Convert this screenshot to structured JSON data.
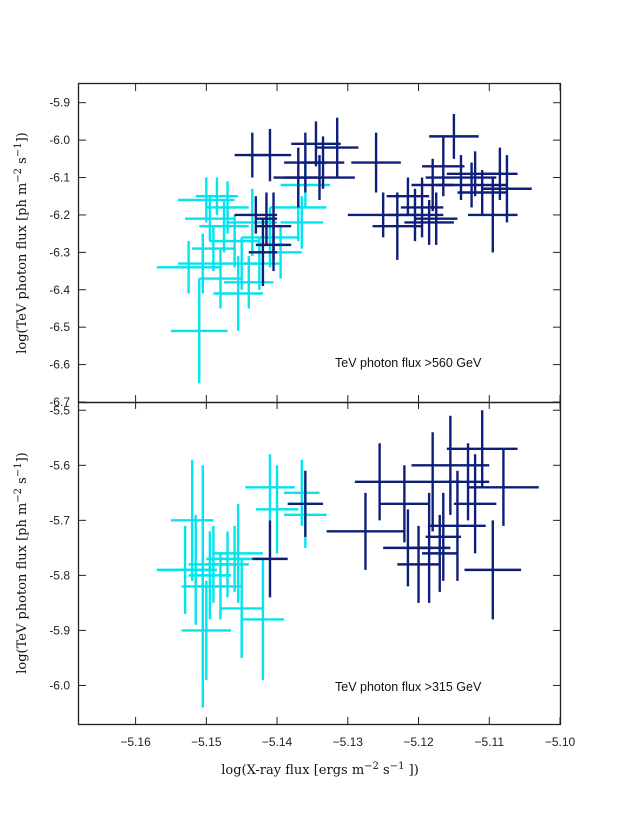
{
  "chart_data": [
    {
      "type": "scatter",
      "panel": "top",
      "annotation": "TeV photon flux >560 GeV",
      "ylabel": "log(TeV photon flux [ph m^-2 s^-1])",
      "xlim": [
        -5.168,
        -5.1
      ],
      "ylim": [
        -6.7,
        -5.85
      ],
      "yticks": [
        -6.7,
        -6.6,
        -6.5,
        -6.4,
        -6.3,
        -6.2,
        -6.1,
        -6.0,
        -5.9
      ],
      "ytick_labels": [
        "-6.7",
        "-6.6",
        "-6.5",
        "-6.4",
        "-6.3",
        "-6.2",
        "-6.1",
        "-6.0",
        "-5.9"
      ],
      "series": [
        {
          "name": "cyan",
          "color": "#00e5ee",
          "points": [
            {
              "x": -5.1525,
              "y": -6.34,
              "xerr": 0.0045,
              "yerr": 0.07
            },
            {
              "x": -5.151,
              "y": -6.51,
              "xerr": 0.004,
              "yerr": 0.14
            },
            {
              "x": -5.1505,
              "y": -6.33,
              "xerr": 0.0035,
              "yerr": 0.08
            },
            {
              "x": -5.15,
              "y": -6.16,
              "xerr": 0.004,
              "yerr": 0.06
            },
            {
              "x": -5.1495,
              "y": -6.21,
              "xerr": 0.0035,
              "yerr": 0.06
            },
            {
              "x": -5.149,
              "y": -6.29,
              "xerr": 0.003,
              "yerr": 0.06
            },
            {
              "x": -5.1485,
              "y": -6.15,
              "xerr": 0.003,
              "yerr": 0.05
            },
            {
              "x": -5.148,
              "y": -6.37,
              "xerr": 0.003,
              "yerr": 0.08
            },
            {
              "x": -5.1475,
              "y": -6.23,
              "xerr": 0.0035,
              "yerr": 0.07
            },
            {
              "x": -5.147,
              "y": -6.18,
              "xerr": 0.003,
              "yerr": 0.07
            },
            {
              "x": -5.146,
              "y": -6.27,
              "xerr": 0.0035,
              "yerr": 0.07
            },
            {
              "x": -5.1455,
              "y": -6.41,
              "xerr": 0.0035,
              "yerr": 0.1
            },
            {
              "x": -5.145,
              "y": -6.33,
              "xerr": 0.003,
              "yerr": 0.07
            },
            {
              "x": -5.144,
              "y": -6.38,
              "xerr": 0.0035,
              "yerr": 0.07
            },
            {
              "x": -5.1435,
              "y": -6.22,
              "xerr": 0.0035,
              "yerr": 0.09
            },
            {
              "x": -5.1425,
              "y": -6.33,
              "xerr": 0.003,
              "yerr": 0.07
            },
            {
              "x": -5.141,
              "y": -6.26,
              "xerr": 0.004,
              "yerr": 0.08
            },
            {
              "x": -5.1395,
              "y": -6.3,
              "xerr": 0.003,
              "yerr": 0.07
            },
            {
              "x": -5.137,
              "y": -6.18,
              "xerr": 0.004,
              "yerr": 0.09
            },
            {
              "x": -5.1365,
              "y": -6.22,
              "xerr": 0.003,
              "yerr": 0.07
            },
            {
              "x": -5.136,
              "y": -6.12,
              "xerr": 0.0035,
              "yerr": 0.06
            }
          ]
        },
        {
          "name": "navy",
          "color": "#0f1e7a",
          "points": [
            {
              "x": -5.1435,
              "y": -6.04,
              "xerr": 0.0025,
              "yerr": 0.06
            },
            {
              "x": -5.143,
              "y": -6.2,
              "xerr": 0.003,
              "yerr": 0.05
            },
            {
              "x": -5.142,
              "y": -6.3,
              "xerr": 0.002,
              "yerr": 0.09
            },
            {
              "x": -5.1415,
              "y": -6.21,
              "xerr": 0.0015,
              "yerr": 0.07
            },
            {
              "x": -5.141,
              "y": -6.04,
              "xerr": 0.003,
              "yerr": 0.07
            },
            {
              "x": -5.1405,
              "y": -6.23,
              "xerr": 0.0025,
              "yerr": 0.09
            },
            {
              "x": -5.1405,
              "y": -6.28,
              "xerr": 0.0025,
              "yerr": 0.07
            },
            {
              "x": -5.137,
              "y": -6.1,
              "xerr": 0.0035,
              "yerr": 0.08
            },
            {
              "x": -5.136,
              "y": -6.06,
              "xerr": 0.003,
              "yerr": 0.08
            },
            {
              "x": -5.1345,
              "y": -6.01,
              "xerr": 0.0035,
              "yerr": 0.06
            },
            {
              "x": -5.134,
              "y": -6.1,
              "xerr": 0.005,
              "yerr": 0.06
            },
            {
              "x": -5.1335,
              "y": -6.06,
              "xerr": 0.003,
              "yerr": 0.07
            },
            {
              "x": -5.1315,
              "y": -6.02,
              "xerr": 0.003,
              "yerr": 0.08
            },
            {
              "x": -5.126,
              "y": -6.06,
              "xerr": 0.0035,
              "yerr": 0.08
            },
            {
              "x": -5.125,
              "y": -6.2,
              "xerr": 0.005,
              "yerr": 0.06
            },
            {
              "x": -5.123,
              "y": -6.23,
              "xerr": 0.0035,
              "yerr": 0.09
            },
            {
              "x": -5.1215,
              "y": -6.15,
              "xerr": 0.003,
              "yerr": 0.05
            },
            {
              "x": -5.1205,
              "y": -6.2,
              "xerr": 0.004,
              "yerr": 0.07
            },
            {
              "x": -5.1195,
              "y": -6.18,
              "xerr": 0.003,
              "yerr": 0.08
            },
            {
              "x": -5.1185,
              "y": -6.22,
              "xerr": 0.0035,
              "yerr": 0.06
            },
            {
              "x": -5.118,
              "y": -6.12,
              "xerr": 0.003,
              "yerr": 0.07
            },
            {
              "x": -5.1175,
              "y": -6.21,
              "xerr": 0.003,
              "yerr": 0.07
            },
            {
              "x": -5.1165,
              "y": -6.07,
              "xerr": 0.003,
              "yerr": 0.08
            },
            {
              "x": -5.115,
              "y": -5.99,
              "xerr": 0.0035,
              "yerr": 0.06
            },
            {
              "x": -5.114,
              "y": -6.1,
              "xerr": 0.005,
              "yerr": 0.06
            },
            {
              "x": -5.1125,
              "y": -6.12,
              "xerr": 0.005,
              "yerr": 0.06
            },
            {
              "x": -5.112,
              "y": -6.09,
              "xerr": 0.004,
              "yerr": 0.06
            },
            {
              "x": -5.111,
              "y": -6.14,
              "xerr": 0.0035,
              "yerr": 0.06
            },
            {
              "x": -5.1095,
              "y": -6.2,
              "xerr": 0.0035,
              "yerr": 0.1
            },
            {
              "x": -5.1085,
              "y": -6.09,
              "xerr": 0.0025,
              "yerr": 0.07
            },
            {
              "x": -5.1075,
              "y": -6.13,
              "xerr": 0.0035,
              "yerr": 0.09
            }
          ]
        }
      ]
    },
    {
      "type": "scatter",
      "panel": "bottom",
      "annotation": "TeV photon flux >315 GeV",
      "xlabel": "log(X-ray flux [ergs m^-2 s^-1])",
      "ylabel": "log(TeV photon flux [ph m^-2 s^-1])",
      "xlim": [
        -5.168,
        -5.1
      ],
      "ylim": [
        -6.07,
        -5.485
      ],
      "xticks": [
        -5.16,
        -5.15,
        -5.14,
        -5.13,
        -5.12,
        -5.11,
        -5.1
      ],
      "xtick_labels": [
        "−5.16",
        "−5.15",
        "−5.14",
        "−5.13",
        "−5.12",
        "−5.11",
        "−5.10"
      ],
      "yticks": [
        -6.0,
        -5.9,
        -5.8,
        -5.7,
        -5.6,
        -5.5
      ],
      "ytick_labels": [
        "-6.0",
        "-5.9",
        "-5.8",
        "-5.7",
        "-5.6",
        "-5.5"
      ],
      "series": [
        {
          "name": "cyan",
          "color": "#00e5ee",
          "points": [
            {
              "x": -5.153,
              "y": -5.79,
              "xerr": 0.004,
              "yerr": 0.08
            },
            {
              "x": -5.152,
              "y": -5.7,
              "xerr": 0.003,
              "yerr": 0.11
            },
            {
              "x": -5.1515,
              "y": -5.79,
              "xerr": 0.003,
              "yerr": 0.1
            },
            {
              "x": -5.1505,
              "y": -5.82,
              "xerr": 0.003,
              "yerr": 0.22
            },
            {
              "x": -5.15,
              "y": -5.9,
              "xerr": 0.0035,
              "yerr": 0.09
            },
            {
              "x": -5.1495,
              "y": -5.8,
              "xerr": 0.003,
              "yerr": 0.08
            },
            {
              "x": -5.149,
              "y": -5.78,
              "xerr": 0.0035,
              "yerr": 0.07
            },
            {
              "x": -5.148,
              "y": -5.82,
              "xerr": 0.003,
              "yerr": 0.06
            },
            {
              "x": -5.147,
              "y": -5.78,
              "xerr": 0.003,
              "yerr": 0.06
            },
            {
              "x": -5.146,
              "y": -5.77,
              "xerr": 0.004,
              "yerr": 0.06
            },
            {
              "x": -5.1455,
              "y": -5.76,
              "xerr": 0.0035,
              "yerr": 0.09
            },
            {
              "x": -5.145,
              "y": -5.86,
              "xerr": 0.003,
              "yerr": 0.09
            },
            {
              "x": -5.142,
              "y": -5.88,
              "xerr": 0.003,
              "yerr": 0.11
            },
            {
              "x": -5.141,
              "y": -5.64,
              "xerr": 0.0035,
              "yerr": 0.06
            },
            {
              "x": -5.14,
              "y": -5.68,
              "xerr": 0.003,
              "yerr": 0.08
            },
            {
              "x": -5.1365,
              "y": -5.65,
              "xerr": 0.0025,
              "yerr": 0.06
            },
            {
              "x": -5.136,
              "y": -5.69,
              "xerr": 0.003,
              "yerr": 0.06
            }
          ]
        },
        {
          "name": "navy",
          "color": "#0f1e7a",
          "points": [
            {
              "x": -5.141,
              "y": -5.77,
              "xerr": 0.0025,
              "yerr": 0.07
            },
            {
              "x": -5.136,
              "y": -5.67,
              "xerr": 0.0025,
              "yerr": 0.06
            },
            {
              "x": -5.1275,
              "y": -5.72,
              "xerr": 0.0055,
              "yerr": 0.07
            },
            {
              "x": -5.1255,
              "y": -5.63,
              "xerr": 0.0035,
              "yerr": 0.07
            },
            {
              "x": -5.122,
              "y": -5.67,
              "xerr": 0.0035,
              "yerr": 0.07
            },
            {
              "x": -5.1215,
              "y": -5.75,
              "xerr": 0.0035,
              "yerr": 0.07
            },
            {
              "x": -5.12,
              "y": -5.78,
              "xerr": 0.003,
              "yerr": 0.07
            },
            {
              "x": -5.1185,
              "y": -5.75,
              "xerr": 0.003,
              "yerr": 0.1
            },
            {
              "x": -5.118,
              "y": -5.63,
              "xerr": 0.004,
              "yerr": 0.09
            },
            {
              "x": -5.117,
              "y": -5.76,
              "xerr": 0.0025,
              "yerr": 0.07
            },
            {
              "x": -5.1165,
              "y": -5.73,
              "xerr": 0.0025,
              "yerr": 0.08
            },
            {
              "x": -5.1155,
              "y": -5.6,
              "xerr": 0.0055,
              "yerr": 0.09
            },
            {
              "x": -5.1145,
              "y": -5.71,
              "xerr": 0.004,
              "yerr": 0.1
            },
            {
              "x": -5.113,
              "y": -5.63,
              "xerr": 0.003,
              "yerr": 0.07
            },
            {
              "x": -5.112,
              "y": -5.67,
              "xerr": 0.003,
              "yerr": 0.09
            },
            {
              "x": -5.111,
              "y": -5.57,
              "xerr": 0.005,
              "yerr": 0.07
            },
            {
              "x": -5.1095,
              "y": -5.79,
              "xerr": 0.004,
              "yerr": 0.09
            },
            {
              "x": -5.108,
              "y": -5.64,
              "xerr": 0.005,
              "yerr": 0.07
            }
          ]
        }
      ]
    }
  ]
}
